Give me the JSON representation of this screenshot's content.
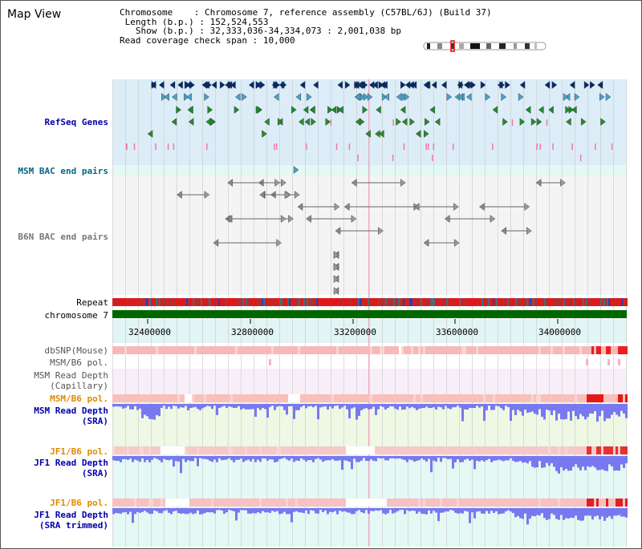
{
  "page": {
    "title": "Map View"
  },
  "header": {
    "chromosome_key": "Chromosome",
    "chromosome_value": "Chromosome 7, reference assembly (C57BL/6J) (Build 37)",
    "length_key": "Length (b.p.)",
    "length_value": "152,524,553",
    "show_key": "Show (b.p.)",
    "show_value": "32,333,036-34,334,073 : 2,001,038 bp",
    "coverage_key": "Read coverage check span",
    "coverage_value": "10,000"
  },
  "tracks": {
    "refseq": "RefSeq Genes",
    "msm_bac": "MSM BAC end pairs",
    "b6n_bac": "B6N BAC end pairs",
    "repeat": "Repeat",
    "chromosome": "chromosome 7",
    "dbsnp": "dbSNP(Mouse)",
    "msm_b6_pol_1": "MSM/B6 pol.",
    "msm_read_depth_cap_1": "MSM Read Depth",
    "msm_read_depth_cap_2": "(Capillary)",
    "msm_b6_pol_2": "MSM/B6 pol.",
    "msm_read_depth_sra_1": "MSM Read Depth",
    "msm_read_depth_sra_2": "(SRA)",
    "jf1_b6_pol_1": "JF1/B6 pol.",
    "jf1_read_depth_sra_1": "JF1 Read Depth",
    "jf1_read_depth_sra_2": "(SRA)",
    "jf1_b6_pol_2": "JF1/B6 pol.",
    "jf1_read_depth_trim_1": "JF1 Read Depth",
    "jf1_read_depth_trim_2": "(SRA trimmed)"
  },
  "axis": {
    "ticks": [
      "32400000",
      "32800000",
      "33200000",
      "33600000",
      "34000000"
    ]
  },
  "colors": {
    "blue_label": "#0000aa",
    "teal_label": "#006688",
    "orange_label": "#e08a00",
    "gene_band": "#ddeef8",
    "read_band": "#eef8e8",
    "jf1_band": "#e4f8f4",
    "chrom_bar": "#006600",
    "depth_bar": "#7a7af0"
  }
}
